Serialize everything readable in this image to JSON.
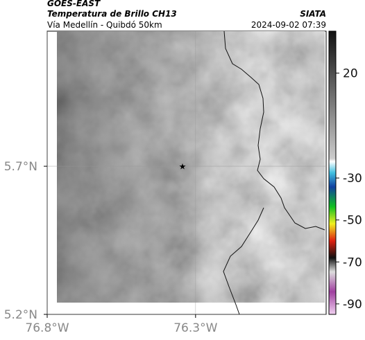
{
  "header": {
    "title": "GOES-EAST",
    "subtitle": "Temperatura de Brillo CH13",
    "region": "Vía Medellín - Quibdó 50km",
    "source": "SIATA",
    "timestamp": "2024-09-02 07:39"
  },
  "map": {
    "xlim": [
      -76.8,
      -75.86
    ],
    "ylim": [
      5.2,
      6.156
    ],
    "xticks": [
      {
        "value": -76.8,
        "label": "76.8°W"
      },
      {
        "value": -76.3,
        "label": "76.3°W"
      }
    ],
    "yticks": [
      {
        "value": 5.2,
        "label": "5.2°N"
      },
      {
        "value": 5.7,
        "label": "5.7°N"
      }
    ],
    "colorbar": {
      "clim": [
        -95,
        40
      ],
      "ticks": [
        20,
        -30,
        -50,
        -70,
        -90
      ]
    }
  }
}
